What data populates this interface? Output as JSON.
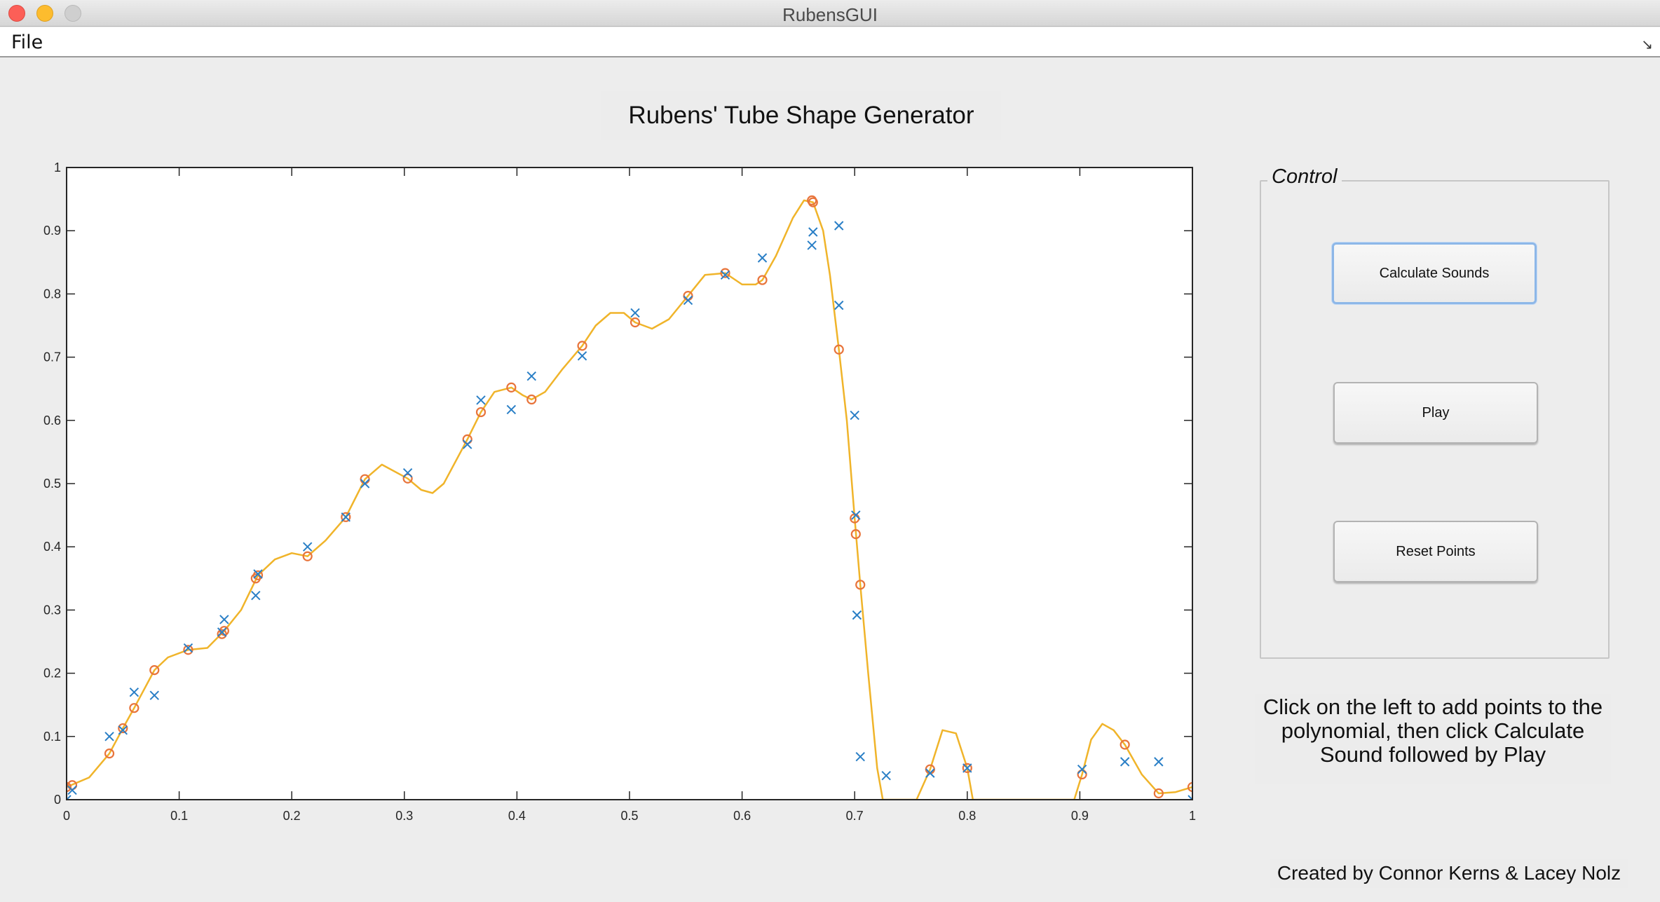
{
  "window": {
    "title": "RubensGUI"
  },
  "menu": {
    "file_label": "File",
    "resize_glyph": "↘"
  },
  "heading": "Rubens' Tube Shape Generator",
  "control": {
    "legend": "Control",
    "calculate_label": "Calculate Sounds",
    "play_label": "Play",
    "reset_label": "Reset Points"
  },
  "instructions": {
    "line1": "Click on the left to add points to the",
    "line2": "polynomial, then click Calculate",
    "line3": "Sound followed by Play"
  },
  "credits": "Created by Connor Kerns & Lacey Nolz",
  "colors": {
    "curve": "#f0b42a",
    "circle": "#e8743b",
    "cross": "#2a7fc6",
    "accent": "#8db7e8"
  },
  "icons": {
    "close": "close-icon",
    "minimize": "minimize-icon",
    "zoom": "zoom-icon"
  },
  "chart_data": {
    "type": "scatter",
    "title": "",
    "xlabel": "",
    "ylabel": "",
    "xlim": [
      0,
      1
    ],
    "ylim": [
      0,
      1
    ],
    "x_ticks": [
      0,
      0.1,
      0.2,
      0.3,
      0.4,
      0.5,
      0.6,
      0.7,
      0.8,
      0.9,
      1
    ],
    "x_tick_labels": [
      "0",
      "0.1",
      "0.2",
      "0.3",
      "0.4",
      "0.5",
      "0.6",
      "0.7",
      "0.8",
      "0.9",
      "1"
    ],
    "y_ticks": [
      0,
      0.1,
      0.2,
      0.3,
      0.4,
      0.5,
      0.6,
      0.7,
      0.8,
      0.9,
      1
    ],
    "y_tick_labels": [
      "0",
      "0.1",
      "0.2",
      "0.3",
      "0.4",
      "0.5",
      "0.6",
      "0.7",
      "0.8",
      "0.9",
      "1"
    ],
    "grid": false,
    "series": [
      {
        "marker": "x",
        "points": [
          [
            0.0,
            0.0
          ],
          [
            0.005,
            0.015
          ],
          [
            0.038,
            0.1
          ],
          [
            0.05,
            0.11
          ],
          [
            0.06,
            0.17
          ],
          [
            0.078,
            0.165
          ],
          [
            0.108,
            0.24
          ],
          [
            0.138,
            0.265
          ],
          [
            0.14,
            0.285
          ],
          [
            0.168,
            0.323
          ],
          [
            0.17,
            0.357
          ],
          [
            0.214,
            0.4
          ],
          [
            0.248,
            0.447
          ],
          [
            0.265,
            0.5
          ],
          [
            0.303,
            0.517
          ],
          [
            0.356,
            0.562
          ],
          [
            0.368,
            0.632
          ],
          [
            0.395,
            0.617
          ],
          [
            0.413,
            0.67
          ],
          [
            0.458,
            0.702
          ],
          [
            0.505,
            0.77
          ],
          [
            0.552,
            0.79
          ],
          [
            0.585,
            0.83
          ],
          [
            0.618,
            0.857
          ],
          [
            0.662,
            0.877
          ],
          [
            0.663,
            0.898
          ],
          [
            0.686,
            0.908
          ],
          [
            0.686,
            0.782
          ],
          [
            0.7,
            0.608
          ],
          [
            0.701,
            0.45
          ],
          [
            0.702,
            0.292
          ],
          [
            0.705,
            0.068
          ],
          [
            0.728,
            0.038
          ],
          [
            0.767,
            0.042
          ],
          [
            0.8,
            0.05
          ],
          [
            0.902,
            0.048
          ],
          [
            0.94,
            0.06
          ],
          [
            0.97,
            0.06
          ],
          [
            1.0,
            0.0
          ]
        ]
      },
      {
        "marker": "o",
        "points": [
          [
            0.0,
            0.02
          ],
          [
            0.005,
            0.023
          ],
          [
            0.038,
            0.073
          ],
          [
            0.05,
            0.113
          ],
          [
            0.06,
            0.145
          ],
          [
            0.078,
            0.205
          ],
          [
            0.108,
            0.237
          ],
          [
            0.138,
            0.262
          ],
          [
            0.14,
            0.267
          ],
          [
            0.168,
            0.35
          ],
          [
            0.17,
            0.355
          ],
          [
            0.214,
            0.385
          ],
          [
            0.248,
            0.447
          ],
          [
            0.265,
            0.507
          ],
          [
            0.303,
            0.508
          ],
          [
            0.356,
            0.57
          ],
          [
            0.368,
            0.613
          ],
          [
            0.395,
            0.652
          ],
          [
            0.413,
            0.633
          ],
          [
            0.458,
            0.718
          ],
          [
            0.505,
            0.755
          ],
          [
            0.552,
            0.797
          ],
          [
            0.585,
            0.833
          ],
          [
            0.618,
            0.822
          ],
          [
            0.662,
            0.948
          ],
          [
            0.663,
            0.945
          ],
          [
            0.686,
            0.712
          ],
          [
            0.7,
            0.445
          ],
          [
            0.701,
            0.42
          ],
          [
            0.705,
            0.34
          ],
          [
            0.767,
            0.048
          ],
          [
            0.8,
            0.05
          ],
          [
            0.902,
            0.04
          ],
          [
            0.94,
            0.087
          ],
          [
            0.97,
            0.01
          ],
          [
            1.0,
            0.02
          ]
        ]
      },
      {
        "marker": "line",
        "points": [
          [
            0.0,
            0.02
          ],
          [
            0.02,
            0.035
          ],
          [
            0.038,
            0.073
          ],
          [
            0.05,
            0.113
          ],
          [
            0.06,
            0.145
          ],
          [
            0.078,
            0.205
          ],
          [
            0.09,
            0.225
          ],
          [
            0.108,
            0.237
          ],
          [
            0.125,
            0.24
          ],
          [
            0.14,
            0.267
          ],
          [
            0.155,
            0.3
          ],
          [
            0.17,
            0.355
          ],
          [
            0.185,
            0.38
          ],
          [
            0.2,
            0.39
          ],
          [
            0.214,
            0.385
          ],
          [
            0.23,
            0.41
          ],
          [
            0.248,
            0.447
          ],
          [
            0.265,
            0.507
          ],
          [
            0.28,
            0.53
          ],
          [
            0.303,
            0.508
          ],
          [
            0.315,
            0.49
          ],
          [
            0.325,
            0.485
          ],
          [
            0.335,
            0.5
          ],
          [
            0.356,
            0.57
          ],
          [
            0.368,
            0.613
          ],
          [
            0.38,
            0.645
          ],
          [
            0.395,
            0.652
          ],
          [
            0.405,
            0.64
          ],
          [
            0.413,
            0.633
          ],
          [
            0.425,
            0.645
          ],
          [
            0.44,
            0.68
          ],
          [
            0.458,
            0.718
          ],
          [
            0.47,
            0.75
          ],
          [
            0.483,
            0.77
          ],
          [
            0.495,
            0.77
          ],
          [
            0.505,
            0.755
          ],
          [
            0.52,
            0.745
          ],
          [
            0.535,
            0.76
          ],
          [
            0.552,
            0.797
          ],
          [
            0.567,
            0.83
          ],
          [
            0.585,
            0.833
          ],
          [
            0.6,
            0.815
          ],
          [
            0.612,
            0.815
          ],
          [
            0.618,
            0.822
          ],
          [
            0.63,
            0.86
          ],
          [
            0.645,
            0.92
          ],
          [
            0.655,
            0.948
          ],
          [
            0.663,
            0.945
          ],
          [
            0.672,
            0.9
          ],
          [
            0.678,
            0.83
          ],
          [
            0.686,
            0.712
          ],
          [
            0.693,
            0.6
          ],
          [
            0.7,
            0.445
          ],
          [
            0.705,
            0.34
          ],
          [
            0.712,
            0.2
          ],
          [
            0.72,
            0.05
          ],
          [
            0.725,
            0.0
          ],
          [
            0.755,
            0.0
          ],
          [
            0.767,
            0.048
          ],
          [
            0.778,
            0.11
          ],
          [
            0.79,
            0.105
          ],
          [
            0.8,
            0.05
          ],
          [
            0.805,
            0.0
          ],
          [
            0.895,
            0.0
          ],
          [
            0.902,
            0.04
          ],
          [
            0.91,
            0.095
          ],
          [
            0.92,
            0.12
          ],
          [
            0.93,
            0.11
          ],
          [
            0.94,
            0.087
          ],
          [
            0.955,
            0.04
          ],
          [
            0.97,
            0.01
          ],
          [
            0.985,
            0.012
          ],
          [
            1.0,
            0.02
          ]
        ]
      }
    ]
  }
}
